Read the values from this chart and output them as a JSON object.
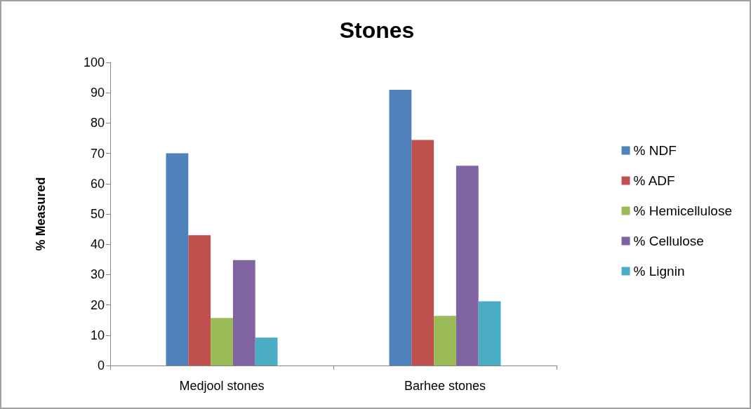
{
  "chart_data": {
    "type": "bar",
    "title": "Stones",
    "ylabel": "% Measured",
    "categories": [
      "Medjool stones",
      "Barhee stones"
    ],
    "series": [
      {
        "name": "% NDF",
        "color": "#4f81bd",
        "values": [
          70,
          91
        ]
      },
      {
        "name": "% ADF",
        "color": "#c0504d",
        "values": [
          43,
          74.4
        ]
      },
      {
        "name": "% Hemicellulose",
        "color": "#9bbb59",
        "values": [
          15.7,
          16.4
        ]
      },
      {
        "name": "% Cellulose",
        "color": "#8064a2",
        "values": [
          34.8,
          65.9
        ]
      },
      {
        "name": "% Lignin",
        "color": "#4bacc6",
        "values": [
          9.2,
          21.2
        ]
      }
    ],
    "ylim": [
      0,
      100
    ],
    "yticks": [
      0,
      10,
      20,
      30,
      40,
      50,
      60,
      70,
      80,
      90,
      100
    ],
    "grid": false,
    "legend": "right"
  }
}
